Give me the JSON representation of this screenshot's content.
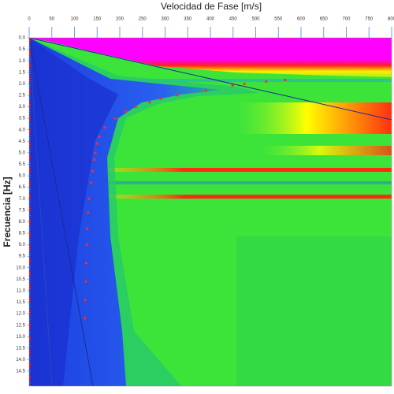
{
  "chart_data": {
    "type": "scatter",
    "x_label": "Velocidad de Fase [m/s]",
    "y_label": "Frecuencia [Hz]",
    "xlim": [
      0,
      800
    ],
    "ylim": [
      0,
      15.15
    ],
    "xticks": [
      0,
      50,
      100,
      150,
      200,
      250,
      300,
      350,
      400,
      450,
      500,
      550,
      600,
      650,
      700,
      750,
      800
    ],
    "yticks": [
      {
        "value": 0,
        "label": "0.0"
      },
      0.5,
      {
        "value": 1,
        "label": "1.0"
      },
      1.5,
      {
        "value": 2,
        "label": "2.0"
      },
      2.5,
      {
        "value": 3,
        "label": "3.0"
      },
      3.5,
      {
        "value": 4,
        "label": "4.0"
      },
      4.5,
      {
        "value": 5,
        "label": "5.0"
      },
      5.5,
      {
        "value": 6,
        "label": "6.0"
      },
      6.5,
      {
        "value": 7,
        "label": "7.0"
      },
      7.5,
      {
        "value": 8,
        "label": "8.0"
      },
      8.5,
      {
        "value": 9,
        "label": "9.0"
      },
      9.5,
      {
        "value": 10,
        "label": "10.0"
      },
      10.5,
      {
        "value": 11,
        "label": "11.0"
      },
      11.5,
      {
        "value": 12,
        "label": "12.0"
      },
      12.5,
      {
        "value": 13,
        "label": "13.0"
      },
      13.5,
      {
        "value": 14,
        "label": "14.0"
      },
      14.5
    ],
    "y_inverted": true,
    "series": [
      {
        "color": "#ff2a2a",
        "x": [
          565,
          523,
          475,
          449,
          390,
          327,
          290,
          266,
          235,
          214,
          190,
          167,
          155,
          150,
          146,
          144,
          140,
          137,
          132,
          130,
          128,
          127,
          126,
          125,
          124,
          123
        ],
        "y": [
          1.83,
          1.9,
          2.0,
          2.07,
          2.3,
          2.5,
          2.65,
          2.8,
          3.0,
          3.2,
          3.5,
          3.9,
          4.3,
          4.6,
          5.0,
          5.3,
          5.8,
          6.3,
          7.0,
          7.6,
          8.3,
          9.0,
          9.8,
          10.6,
          11.4,
          12.2
        ]
      }
    ]
  }
}
